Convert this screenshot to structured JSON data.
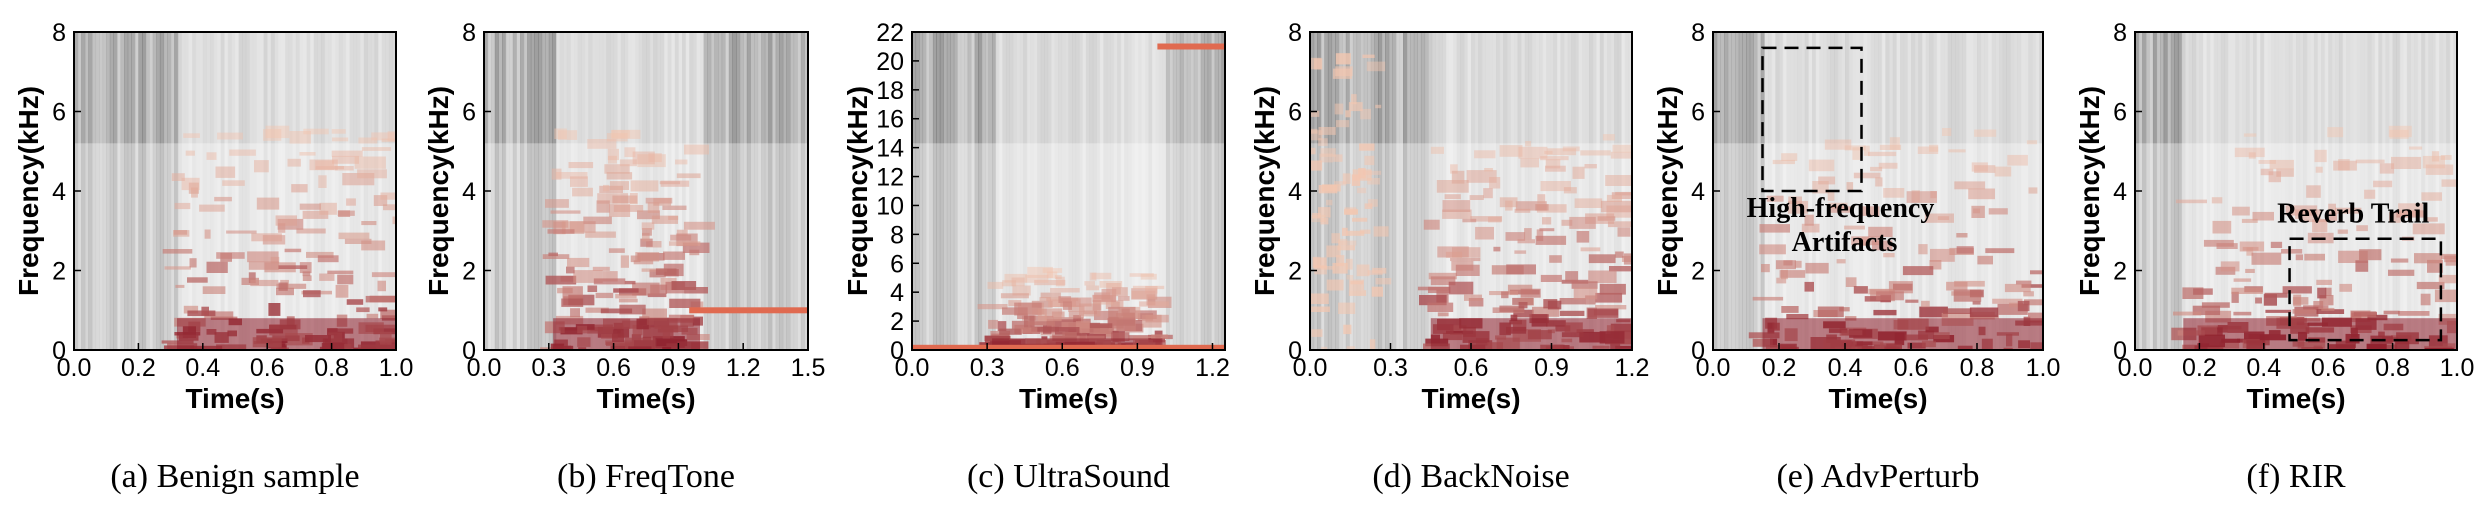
{
  "chart_data": [
    {
      "type": "heatmap",
      "caption": "(a)  Benign sample",
      "xlabel": "Time(s)",
      "ylabel": "Frequency(kHz)",
      "xlim": [
        0,
        1.0
      ],
      "ylim": [
        0,
        8
      ],
      "xticks": [
        "0.0",
        "0.2",
        "0.4",
        "0.6",
        "0.8",
        "1.0"
      ],
      "yticks": [
        "0",
        "2",
        "4",
        "6",
        "8"
      ],
      "speech_span": [
        0.32,
        1.0
      ],
      "annotations": []
    },
    {
      "type": "heatmap",
      "caption": "(b)  FreqTone",
      "xlabel": "Time(s)",
      "ylabel": "Frequency(kHz)",
      "xlim": [
        0,
        1.5
      ],
      "ylim": [
        0,
        8
      ],
      "xticks": [
        "0.0",
        "0.3",
        "0.6",
        "0.9",
        "1.2",
        "1.5"
      ],
      "yticks": [
        "0",
        "2",
        "4",
        "6",
        "8"
      ],
      "speech_span": [
        0.32,
        1.0
      ],
      "tones": [
        {
          "t0": 0.95,
          "t1": 1.5,
          "freq": 1.0
        }
      ],
      "annotations": []
    },
    {
      "type": "heatmap",
      "caption": "(c)  UltraSound",
      "xlabel": "Time(s)",
      "ylabel": "Frequency(kHz)",
      "xlim": [
        0,
        1.25
      ],
      "ylim": [
        0,
        22
      ],
      "xticks": [
        "0.0",
        "0.3",
        "0.6",
        "0.9",
        "1.2"
      ],
      "xtick_values": [
        0,
        0.3,
        0.6,
        0.9,
        1.2
      ],
      "yticks": [
        "0",
        "2",
        "4",
        "6",
        "8",
        "10",
        "12",
        "14",
        "16",
        "18",
        "20",
        "22"
      ],
      "speech_span": [
        0.32,
        1.0
      ],
      "tones": [
        {
          "t0": 0.98,
          "t1": 1.25,
          "freq": 21.0
        },
        {
          "t0": 0.0,
          "t1": 1.25,
          "freq": 0.15
        }
      ],
      "annotations": []
    },
    {
      "type": "heatmap",
      "caption": "(d)  BackNoise",
      "xlabel": "Time(s)",
      "ylabel": "Frequency(kHz)",
      "xlim": [
        0,
        1.2
      ],
      "ylim": [
        0,
        8
      ],
      "xticks": [
        "0.0",
        "0.3",
        "0.6",
        "0.9",
        "1.2"
      ],
      "yticks": [
        "0",
        "2",
        "4",
        "6",
        "8"
      ],
      "speech_span": [
        0.45,
        1.2
      ],
      "noise_span": [
        0.0,
        0.28
      ],
      "annotations": []
    },
    {
      "type": "heatmap",
      "caption": "(e)  AdvPerturb",
      "xlabel": "Time(s)",
      "ylabel": "Frequency(kHz)",
      "xlim": [
        0,
        1.0
      ],
      "ylim": [
        0,
        8
      ],
      "xticks": [
        "0.0",
        "0.2",
        "0.4",
        "0.6",
        "0.8",
        "1.0"
      ],
      "yticks": [
        "0",
        "2",
        "4",
        "6",
        "8"
      ],
      "speech_span": [
        0.15,
        1.0
      ],
      "annotations": [
        {
          "label": "High-frequency",
          "label2": "Artifacts",
          "box": [
            0.15,
            0.45,
            4.0,
            7.6
          ]
        }
      ]
    },
    {
      "type": "heatmap",
      "caption": "(f)  RIR",
      "xlabel": "Time(s)",
      "ylabel": "Frequency(kHz)",
      "xlim": [
        0,
        1.0
      ],
      "ylim": [
        0,
        8
      ],
      "xticks": [
        "0.0",
        "0.2",
        "0.4",
        "0.6",
        "0.8",
        "1.0"
      ],
      "yticks": [
        "0",
        "2",
        "4",
        "6",
        "8"
      ],
      "speech_span": [
        0.15,
        1.0
      ],
      "annotations": [
        {
          "label": "Reverb Trail",
          "label2": "",
          "box": [
            0.48,
            0.95,
            0.25,
            2.8
          ]
        }
      ]
    }
  ],
  "colors": {
    "background_dark": "#333333",
    "background_light": "#f2f2f2",
    "energy_low": "#f3c6b0",
    "energy_high": "#8e1f2c",
    "tone": "#e06a50"
  }
}
